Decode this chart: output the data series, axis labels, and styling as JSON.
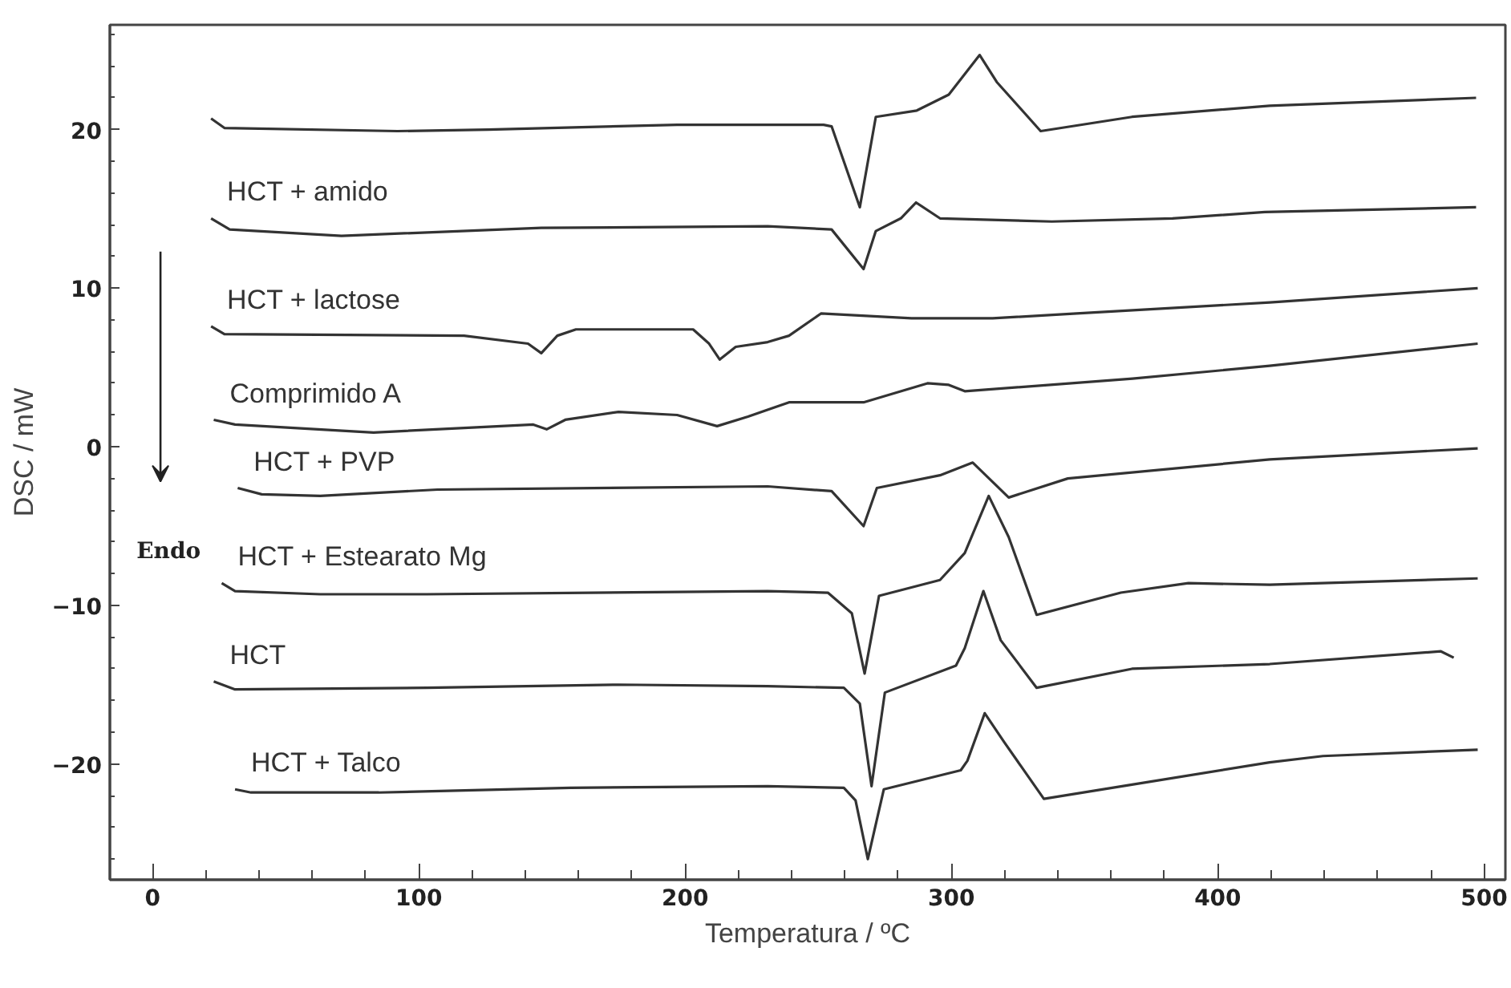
{
  "chart_data": {
    "type": "line",
    "xlabel": "Temperatura / ºC",
    "ylabel": "DSC / mW",
    "legend": false,
    "grid": false,
    "xlim": [
      -16,
      508
    ],
    "ylim": [
      -27.3,
      26.6
    ],
    "xticks": [
      0,
      100,
      200,
      300,
      400,
      500
    ],
    "yticks": [
      -20,
      -10,
      0,
      10,
      20
    ],
    "annotations": [
      "Endo"
    ],
    "series": [
      {
        "color": "#333333",
        "x": [
          22,
          27,
          92,
          126,
          197,
          219,
          252,
          255,
          265.6,
          271.6,
          287,
          299,
          310.6,
          317,
          333.5,
          367.8,
          419.5,
          497
        ],
        "values": [
          20.7,
          20.1,
          19.9,
          20.0,
          20.3,
          20.3,
          20.3,
          20.2,
          15.1,
          20.8,
          21.2,
          22.2,
          24.7,
          23.0,
          19.9,
          20.8,
          21.5,
          22.0
        ]
      },
      {
        "name": "HCT + amido",
        "color": "#333333",
        "x": [
          22,
          29,
          71,
          146,
          231,
          255,
          267,
          271.6,
          281,
          286.7,
          295.7,
          337.7,
          383,
          417.7,
          497
        ],
        "values": [
          14.4,
          13.7,
          13.3,
          13.8,
          13.9,
          13.7,
          11.2,
          13.6,
          14.4,
          15.4,
          14.4,
          14.2,
          14.4,
          14.8,
          15.1
        ]
      },
      {
        "name": "HCT + lactose",
        "color": "#333333",
        "x": [
          22,
          27,
          117,
          141,
          146,
          152,
          159,
          203,
          209,
          213,
          219,
          231,
          239,
          251,
          285,
          315.5,
          347,
          419.5,
          497.6
        ],
        "values": [
          7.6,
          7.1,
          7.0,
          6.5,
          5.9,
          7.0,
          7.4,
          7.4,
          6.5,
          5.5,
          6.3,
          6.6,
          7.0,
          8.4,
          8.1,
          8.1,
          8.4,
          9.1,
          10.0
        ]
      },
      {
        "name": "Comprimido A",
        "color": "#333333",
        "x": [
          23,
          31,
          83,
          143,
          148,
          155,
          175,
          197,
          212,
          223.6,
          239,
          267,
          291,
          299,
          305,
          368,
          419.5,
          497.6
        ],
        "values": [
          1.7,
          1.4,
          0.9,
          1.4,
          1.1,
          1.7,
          2.2,
          2.0,
          1.3,
          1.9,
          2.8,
          2.8,
          4.0,
          3.9,
          3.5,
          4.3,
          5.1,
          6.5
        ]
      },
      {
        "name": "HCT + PVP",
        "color": "#333333",
        "x": [
          32,
          41,
          63,
          107,
          231,
          255,
          267,
          272,
          295.7,
          308,
          321.5,
          343.7,
          419.5,
          497.6
        ],
        "values": [
          -2.6,
          -3.0,
          -3.1,
          -2.7,
          -2.5,
          -2.8,
          -5.0,
          -2.6,
          -1.8,
          -1.0,
          -3.2,
          -2.0,
          -0.8,
          -0.1
        ]
      },
      {
        "name": "HCT + Estearato Mg",
        "color": "#333333",
        "x": [
          26,
          31,
          63,
          103,
          231,
          253.6,
          262.6,
          267.4,
          272.8,
          295.7,
          305,
          314,
          321.5,
          332,
          363.6,
          389,
          419.5,
          497.6
        ],
        "values": [
          -8.6,
          -9.1,
          -9.3,
          -9.3,
          -9.1,
          -9.2,
          -10.5,
          -14.3,
          -9.4,
          -8.4,
          -6.7,
          -3.1,
          -5.7,
          -10.6,
          -9.2,
          -8.6,
          -8.7,
          -8.3
        ]
      },
      {
        "name": "HCT",
        "color": "#333333",
        "x": [
          23,
          31,
          103,
          175,
          231,
          259.6,
          265.6,
          270,
          275,
          301.7,
          305,
          312,
          318.5,
          332,
          367.8,
          419.5,
          483.8,
          488.6
        ],
        "values": [
          -14.8,
          -15.3,
          -15.2,
          -15.0,
          -15.1,
          -15.2,
          -16.2,
          -21.4,
          -15.5,
          -13.8,
          -12.7,
          -9.1,
          -12.2,
          -15.2,
          -14.0,
          -13.7,
          -12.9,
          -13.3
        ]
      },
      {
        "name": "HCT + Talco",
        "color": "#333333",
        "x": [
          31,
          37,
          85,
          157,
          231,
          259.6,
          264,
          268.6,
          274.6,
          303.5,
          306,
          312.5,
          319.7,
          334.7,
          367.8,
          419.5,
          439.5,
          497.6
        ],
        "values": [
          -21.6,
          -21.8,
          -21.8,
          -21.5,
          -21.4,
          -21.5,
          -22.3,
          -26.0,
          -21.6,
          -20.4,
          -19.8,
          -16.8,
          -18.6,
          -22.2,
          -21.3,
          -19.9,
          -19.5,
          -19.1
        ]
      }
    ]
  }
}
